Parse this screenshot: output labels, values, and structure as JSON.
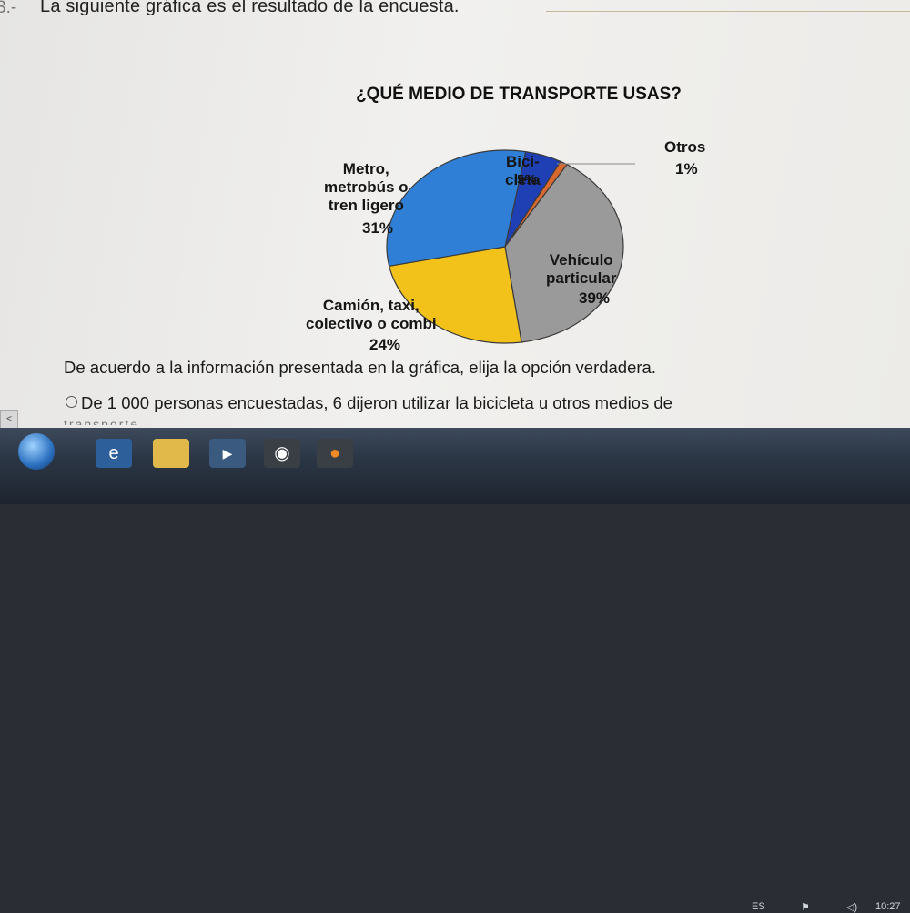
{
  "question": {
    "number": "3.-",
    "text": "La siguiente gráfica es el resultado de la encuesta."
  },
  "chart_data": {
    "type": "pie",
    "title": "¿QUÉ MEDIO DE TRANSPORTE USAS?",
    "categories": [
      "Bicicleta",
      "Otros",
      "Vehículo particular",
      "Camión, taxi, colectivo o combi",
      "Metro, metrobús o tren ligero"
    ],
    "values": [
      5,
      1,
      39,
      24,
      31
    ],
    "labels": [
      "Bici-\ncleta",
      "Otros",
      "Vehículo\nparticular",
      "Camión, taxi,\ncolectivo o combi",
      "Metro,\nmetrobús o\ntren ligero"
    ],
    "percent_labels": [
      "5%",
      "1%",
      "39%",
      "24%",
      "31%"
    ],
    "colors": [
      "#1f3fb5",
      "#d9682c",
      "#9a9a9a",
      "#f2c21a",
      "#2f7fd6"
    ],
    "legend": "none"
  },
  "paragraph": "De acuerdo a la información presentada en la gráfica, elija la opción verdadera.",
  "option_a": "De 1 000 personas encuestadas, 6 dijeron utilizar la bicicleta u otros medios de",
  "option_a_cut": "transporte",
  "taskbar": {
    "lang": "ES",
    "clock": "10:27"
  }
}
